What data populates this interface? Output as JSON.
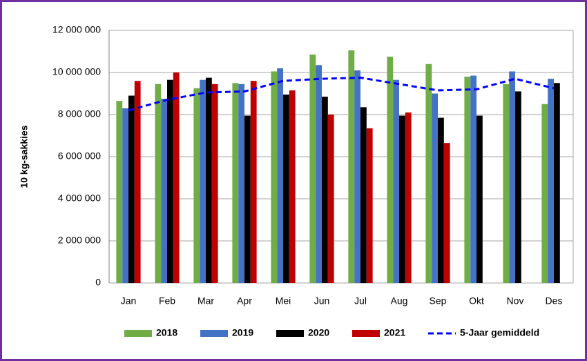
{
  "chart_data": {
    "type": "bar",
    "y_label": "10 kg-sakkies",
    "categories": [
      "Jan",
      "Feb",
      "Mar",
      "Apr",
      "Mei",
      "Jun",
      "Jul",
      "Aug",
      "Sep",
      "Okt",
      "Nov",
      "Des"
    ],
    "series": [
      {
        "name": "2018",
        "color": "#70ad47",
        "values": [
          8650000,
          9450000,
          9250000,
          9500000,
          10050000,
          10850000,
          11050000,
          10750000,
          10400000,
          9800000,
          9450000,
          8500000
        ]
      },
      {
        "name": "2019",
        "color": "#4472c4",
        "values": [
          8300000,
          8750000,
          9650000,
          9450000,
          10200000,
          10350000,
          10100000,
          9650000,
          9000000,
          9850000,
          10050000,
          9700000
        ]
      },
      {
        "name": "2020",
        "color": "#000000",
        "values": [
          8900000,
          9650000,
          9750000,
          7950000,
          8950000,
          8850000,
          8350000,
          7950000,
          7850000,
          7950000,
          9100000,
          9500000
        ]
      },
      {
        "name": "2021",
        "color": "#c00000",
        "values": [
          9600000,
          10000000,
          9450000,
          9600000,
          9150000,
          8000000,
          7350000,
          8100000,
          6650000,
          null,
          null,
          null
        ]
      },
      {
        "name": "5-Jaar gemiddeld",
        "color": "#0000ff",
        "type": "line",
        "dashed": true,
        "values": [
          8200000,
          8700000,
          9050000,
          9100000,
          9600000,
          9700000,
          9750000,
          9450000,
          9150000,
          9200000,
          9700000,
          9250000
        ]
      }
    ],
    "ylim": [
      0,
      12000000
    ],
    "yticks": [
      0,
      {
        "value": 2000000,
        "label": "2 000 000"
      },
      {
        "value": 4000000,
        "label": "4 000 000"
      },
      {
        "value": 6000000,
        "label": "6 000 000"
      },
      {
        "value": 8000000,
        "label": "8 000 000"
      },
      {
        "value": 10000000,
        "label": "10 000 000"
      },
      {
        "value": 12000000,
        "label": "12 000 000"
      }
    ],
    "grid": true,
    "legend": "bottom"
  }
}
